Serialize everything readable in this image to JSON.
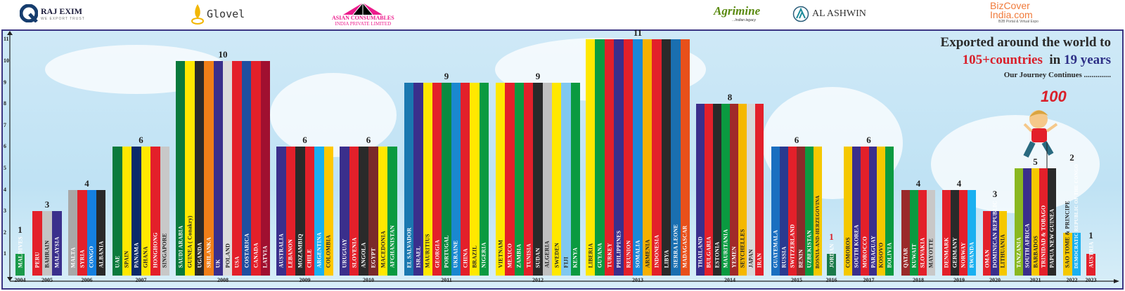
{
  "header": {
    "logos": [
      {
        "name": "RAJ EXIM",
        "tagline": "WE EXPORT TRUST"
      },
      {
        "name": "Glovel"
      },
      {
        "name": "ASIAN CONSUMABLES",
        "tagline": "INDIA PRIVATE LIMITED"
      },
      {
        "name": "Agrimine",
        "tagline": "...Indian legacy"
      },
      {
        "name": "AL ASHWIN"
      },
      {
        "name": "BizCover India.com",
        "tagline": "B2B Portal & Virtual Expo"
      }
    ]
  },
  "tagline": {
    "line1": "Exported around the world to",
    "countries": "105+countries",
    "in": "in",
    "years": "19 years",
    "line3": "Our Journey Continues ..............",
    "badge": "100"
  },
  "colors": {
    "frame": "#3b3583",
    "red_text": "#d9202b",
    "blue_text": "#2d2f86"
  },
  "chart_data": {
    "type": "bar",
    "title": "",
    "xlabel": "",
    "ylabel": "",
    "ylim": [
      0,
      11
    ],
    "yticks": [
      1,
      2,
      3,
      4,
      5,
      6,
      7,
      8,
      9,
      10,
      11
    ],
    "grid": false,
    "categories": [
      "2004",
      "2005",
      "2006",
      "2007",
      "2008",
      "2009",
      "2010",
      "2011",
      "2012",
      "2013",
      "2014",
      "2015",
      "2016",
      "2017",
      "2018",
      "2019",
      "2020",
      "2021",
      "2022",
      "2023"
    ],
    "values": [
      1,
      3,
      4,
      6,
      10,
      6,
      6,
      9,
      9,
      11,
      8,
      6,
      1,
      6,
      4,
      4,
      3,
      5,
      2,
      1
    ],
    "countries": [
      [
        "MALDIVES"
      ],
      [
        "PERU",
        "BAHRAIN",
        "MALAYSIA"
      ],
      [
        "MALTA",
        "SYRIA",
        "CONGO",
        "ALBANIA"
      ],
      [
        "UAE",
        "SPAIN",
        "PANAMA",
        "GHANA",
        "HONGHONG",
        "SINGAPORE"
      ],
      [
        "SAUDI ARABIA",
        "GUINEA ( Conakry)",
        "UGANDA",
        "SRILANKA",
        "UK",
        "POLAND",
        "USA",
        "COSTARICA",
        "CANADA",
        "LATVIA"
      ],
      [
        "AUSTRALIA",
        "LEBANON",
        "MOZAMBIQ",
        "CHILE",
        "ARGENTINA",
        "COLOMBIA"
      ],
      [
        "URUGUAY",
        "SLOVENIA",
        "ANGOLA",
        "EGYPT",
        "MACEDONIA",
        "AFGHANISTAN"
      ],
      [
        "EL SALVADOR",
        "ISRAEL",
        "MAURITIUS",
        "GEORGIA",
        "PORTUGAL",
        "UKRAINE",
        "CHINA",
        "BRAZIL",
        "NIGERIA"
      ],
      [
        "VIETNAM",
        "MEXICO",
        "ZAMBIA",
        "TUNISIA",
        "SUDAN",
        "ALGERIA",
        "SWEDEN",
        "FIJI",
        "KENYA"
      ],
      [
        "LIBERIA",
        "GUYANA",
        "TURKEY",
        "PHILIPPINES",
        "REUNION",
        "SOMALIA",
        "ARMENIA",
        "INDONESIA",
        "LIBYA",
        "SIERRA LEONE",
        "MADAGASCAR"
      ],
      [
        "THAILAND",
        "BULGARIA",
        "ESTONIA",
        "MAURITANIA",
        "YEMEN",
        "SEYCHELLES",
        "JAPAN",
        "IRAN"
      ],
      [
        "GUATEMALA",
        "RUSSIA",
        "SWITZERLAND",
        "BENIN",
        "UZBEKISTAN",
        "BOSNIA-AND-HERZEGOVINA"
      ],
      [
        "JORDAN"
      ],
      [
        "COMOROS",
        "SOUTH KOREA",
        "MOROCCO",
        "PARAGUAY",
        "KOSOVO",
        "BOLIVIA"
      ],
      [
        "QATAR",
        "KUWAIT",
        "SLOVAKIA",
        "MAYOTTE"
      ],
      [
        "DENMARK",
        "GERMANY",
        "NORWAY",
        "RWANDA"
      ],
      [
        "OMAN",
        "DOMINICAN REPUBLIC",
        "LITHUANIA"
      ],
      [
        "TANZANIA",
        "SOUTH AFRICA",
        "BARBADOS",
        "TRINIDAD & TOBAGO",
        "PAPUA NEW GUINEA"
      ],
      [
        "SAO TOME & PRINCIPE",
        "DEMOCRATIC REPUBLIC OF THE CONGO"
      ],
      [
        "AUSTRIA"
      ]
    ],
    "bar_colors": [
      [
        "#1a9a4a"
      ],
      [
        "#e3202a",
        "#c4c4c4",
        "#3a2f8c"
      ],
      [
        "#a8a8a8",
        "#e3202a",
        "#1580e0",
        "#2a2a2a"
      ],
      [
        "#0a7a3c",
        "#ffe800",
        "#0a2a6a",
        "#ffe800",
        "#e3202a",
        "#c8c8c8"
      ],
      [
        "#0a7a3c",
        "#ffe800",
        "#2a2a2a",
        "#f07f18",
        "#3a2f8c",
        "#dcdcdc",
        "#e3202a",
        "#1f4fa0",
        "#e3202a",
        "#a01030"
      ],
      [
        "#3a2f8c",
        "#e3202a",
        "#2a2a2a",
        "#e3202a",
        "#1ab0f0",
        "#ffc800"
      ],
      [
        "#3a2f8c",
        "#e3202a",
        "#2a2a2a",
        "#7a2a2a",
        "#ffe800",
        "#0a9a40"
      ],
      [
        "#1a78b0",
        "#3a2f8c",
        "#ffe800",
        "#e3202a",
        "#0a8a40",
        "#1a88d0",
        "#e3202a",
        "#ffe800",
        "#0a9a40"
      ],
      [
        "#ffe800",
        "#e3202a",
        "#0a9a40",
        "#e3202a",
        "#2a2a2a",
        "#c0c0c0",
        "#ffe800",
        "#80c8f0",
        "#0a9a40"
      ],
      [
        "#ffe800",
        "#0a9a40",
        "#e3202a",
        "#3a2f8c",
        "#e3202a",
        "#1a88d8",
        "#f5b000",
        "#e3202a",
        "#2a2a2a",
        "#1a6fb0",
        "#e8501a"
      ],
      [
        "#3a2f8c",
        "#e3202a",
        "#2a2a2a",
        "#0a9a40",
        "#a02a2a",
        "#f5b800",
        "#d8d8d8",
        "#e3202a"
      ],
      [
        "#1a6fc0",
        "#2a3a90",
        "#e3202a",
        "#8a2a2a",
        "#0a9a40",
        "#f5c800"
      ],
      [
        "#1a7a4a"
      ],
      [
        "#f5c800",
        "#3a2f8c",
        "#e3202a",
        "#3a2f8c",
        "#f5c800",
        "#0a9a40"
      ],
      [
        "#9a2a2a",
        "#0a9a40",
        "#e3202a",
        "#c8c8c8"
      ],
      [
        "#e3202a",
        "#2a2a2a",
        "#e3202a",
        "#1ab0f0"
      ],
      [
        "#e3202a",
        "#3a2f8c",
        "#f5c800"
      ],
      [
        "#8ab820",
        "#3a2f8c",
        "#f5c800",
        "#e3202a",
        "#2a2a2a"
      ],
      [
        "#f5c800",
        "#1ab0f0"
      ],
      [
        "#e3202a"
      ]
    ],
    "highlight_value_color": {
      "2016": "#d9202b"
    }
  }
}
